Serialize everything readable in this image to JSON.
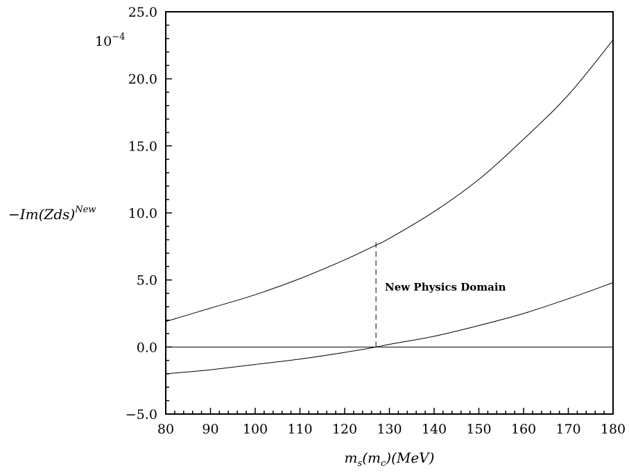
{
  "chart_data": {
    "type": "line",
    "title": "",
    "xlabel": "m_s(m_c)(MeV)",
    "xlabel_parts": {
      "m": "m",
      "s": "s",
      "open1": "(",
      "m2": "m",
      "c": "c",
      "close1": ")",
      "unit": "(MeV)"
    },
    "ylabel": "-Im(Zds)^New",
    "ylabel_parts": {
      "base": "−Im(Zds)",
      "sup": "New"
    },
    "y_scale_note": {
      "base": "10",
      "exp": "−4"
    },
    "xlim": [
      80,
      180
    ],
    "ylim": [
      -5,
      25
    ],
    "x_ticks": [
      "80",
      "90",
      "100",
      "110",
      "120",
      "130",
      "140",
      "150",
      "160",
      "170",
      "180"
    ],
    "y_ticks": [
      "−5.0",
      "0.0",
      "5.0",
      "10.0",
      "15.0",
      "20.0",
      "25.0"
    ],
    "x_tick_values": [
      80,
      90,
      100,
      110,
      120,
      130,
      140,
      150,
      160,
      170,
      180
    ],
    "y_tick_values": [
      -5,
      0,
      5,
      10,
      15,
      20,
      25
    ],
    "series": [
      {
        "x": [
          80,
          90,
          100,
          110,
          120,
          127,
          130,
          140,
          150,
          160,
          170,
          180
        ],
        "values": [
          1.9,
          2.9,
          3.9,
          5.1,
          6.5,
          7.6,
          8.1,
          10.1,
          12.5,
          15.5,
          18.8,
          22.9
        ]
      },
      {
        "x": [
          80,
          90,
          100,
          110,
          120,
          127,
          130,
          140,
          150,
          160,
          170,
          180
        ],
        "values": [
          -2.0,
          -1.7,
          -1.3,
          -0.9,
          -0.4,
          0.0,
          0.2,
          0.8,
          1.6,
          2.5,
          3.6,
          4.8
        ]
      },
      {
        "x": [
          80,
          180
        ],
        "values": [
          0,
          0
        ]
      }
    ],
    "vline": {
      "x": 127,
      "y_from": 0,
      "y_to": 7.6,
      "style": "dashed"
    },
    "annotation": {
      "text": "New Physics Domain",
      "x": 129,
      "y": 4.2
    }
  }
}
